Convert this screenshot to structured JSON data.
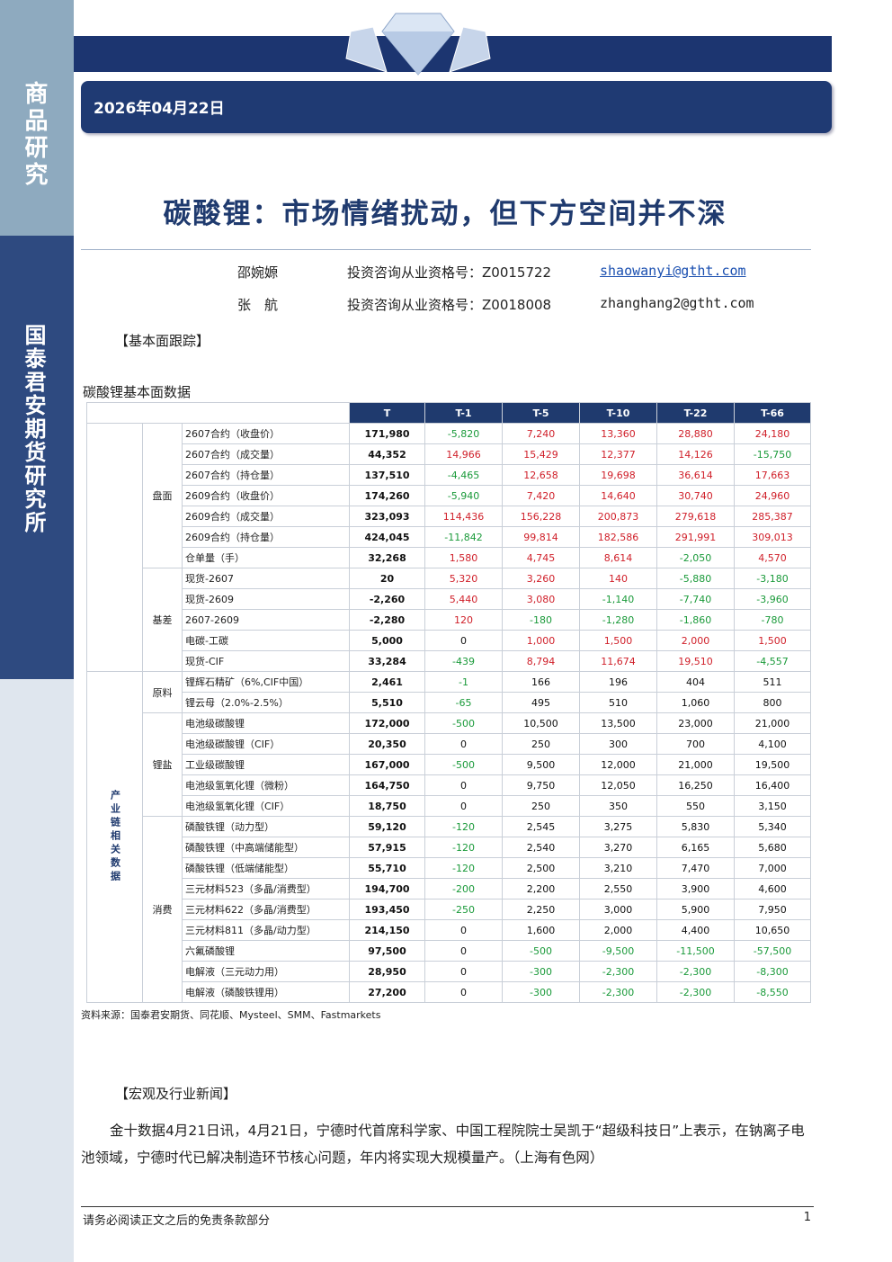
{
  "header": {
    "category": "商品研究",
    "org": "国泰君安期货研究所",
    "date": "2026年04月22日"
  },
  "title": "碳酸锂：市场情绪扰动，但下方空间并不深",
  "authors": [
    {
      "name": "邵婉嫄",
      "license": "投资咨询从业资格号：Z0015722",
      "email": "shaowanyi@gtht.com"
    },
    {
      "name": "张　航",
      "license": "投资咨询从业资格号：Z0018008",
      "email": "zhanghang2@gtht.com"
    }
  ],
  "section1": "【基本面跟踪】",
  "table": {
    "caption": "碳酸锂基本面数据",
    "columns": [
      "T",
      "T-1",
      "T-5",
      "T-10",
      "T-22",
      "T-66"
    ],
    "sections": [
      {
        "categories": [
          {
            "label": "盘面",
            "rows": [
              {
                "name": "2607合约（收盘价）",
                "values": [
                  "171,980",
                  "-5,820",
                  "7,240",
                  "13,360",
                  "28,880",
                  "24,180"
                ]
              },
              {
                "name": "2607合约（成交量）",
                "values": [
                  "44,352",
                  "14,966",
                  "15,429",
                  "12,377",
                  "14,126",
                  "-15,750"
                ]
              },
              {
                "name": "2607合约（持仓量）",
                "values": [
                  "137,510",
                  "-4,465",
                  "12,658",
                  "19,698",
                  "36,614",
                  "17,663"
                ]
              },
              {
                "name": "2609合约（收盘价）",
                "values": [
                  "174,260",
                  "-5,940",
                  "7,420",
                  "14,640",
                  "30,740",
                  "24,960"
                ]
              },
              {
                "name": "2609合约（成交量）",
                "values": [
                  "323,093",
                  "114,436",
                  "156,228",
                  "200,873",
                  "279,618",
                  "285,387"
                ]
              },
              {
                "name": "2609合约（持仓量）",
                "values": [
                  "424,045",
                  "-11,842",
                  "99,814",
                  "182,586",
                  "291,991",
                  "309,013"
                ]
              },
              {
                "name": "仓单量（手）",
                "values": [
                  "32,268",
                  "1,580",
                  "4,745",
                  "8,614",
                  "-2,050",
                  "4,570"
                ]
              }
            ]
          },
          {
            "label": "基差",
            "rows": [
              {
                "name": "现货-2607",
                "values": [
                  "20",
                  "5,320",
                  "3,260",
                  "140",
                  "-5,880",
                  "-3,180"
                ]
              },
              {
                "name": "现货-2609",
                "values": [
                  "-2,260",
                  "5,440",
                  "3,080",
                  "-1,140",
                  "-7,740",
                  "-3,960"
                ]
              },
              {
                "name": "2607-2609",
                "values": [
                  "-2,280",
                  "120",
                  "-180",
                  "-1,280",
                  "-1,860",
                  "-780"
                ]
              },
              {
                "name": "电碳-工碳",
                "values": [
                  "5,000",
                  "0",
                  "1,000",
                  "1,500",
                  "2,000",
                  "1,500"
                ]
              },
              {
                "name": "现货-CIF",
                "values": [
                  "33,284",
                  "-439",
                  "8,794",
                  "11,674",
                  "19,510",
                  "-4,557"
                ]
              }
            ]
          }
        ]
      },
      {
        "label": "产业链相关数据",
        "categories": [
          {
            "label": "原料",
            "rows": [
              {
                "name": "锂辉石精矿（6%,CIF中国）",
                "values": [
                  "2,461",
                  "-1",
                  "166",
                  "196",
                  "404",
                  "511"
                ]
              },
              {
                "name": "锂云母（2.0%-2.5%）",
                "values": [
                  "5,510",
                  "-65",
                  "495",
                  "510",
                  "1,060",
                  "800"
                ]
              }
            ]
          },
          {
            "label": "锂盐",
            "rows": [
              {
                "name": "电池级碳酸锂",
                "values": [
                  "172,000",
                  "-500",
                  "10,500",
                  "13,500",
                  "23,000",
                  "21,000"
                ]
              },
              {
                "name": "电池级碳酸锂（CIF）",
                "values": [
                  "20,350",
                  "0",
                  "250",
                  "300",
                  "700",
                  "4,100"
                ]
              },
              {
                "name": "工业级碳酸锂",
                "values": [
                  "167,000",
                  "-500",
                  "9,500",
                  "12,000",
                  "21,000",
                  "19,500"
                ]
              },
              {
                "name": "电池级氢氧化锂（微粉）",
                "values": [
                  "164,750",
                  "0",
                  "9,750",
                  "12,050",
                  "16,250",
                  "16,400"
                ]
              },
              {
                "name": "电池级氢氧化锂（CIF）",
                "values": [
                  "18,750",
                  "0",
                  "250",
                  "350",
                  "550",
                  "3,150"
                ]
              }
            ]
          },
          {
            "label": "消费",
            "rows": [
              {
                "name": "磷酸铁锂（动力型）",
                "values": [
                  "59,120",
                  "-120",
                  "2,545",
                  "3,275",
                  "5,830",
                  "5,340"
                ]
              },
              {
                "name": "磷酸铁锂（中高端储能型）",
                "values": [
                  "57,915",
                  "-120",
                  "2,540",
                  "3,270",
                  "6,165",
                  "5,680"
                ]
              },
              {
                "name": "磷酸铁锂（低端储能型）",
                "values": [
                  "55,710",
                  "-120",
                  "2,500",
                  "3,210",
                  "7,470",
                  "7,000"
                ]
              },
              {
                "name": "三元材料523（多晶/消费型）",
                "values": [
                  "194,700",
                  "-200",
                  "2,200",
                  "2,550",
                  "3,900",
                  "4,600"
                ]
              },
              {
                "name": "三元材料622（多晶/消费型）",
                "values": [
                  "193,450",
                  "-250",
                  "2,250",
                  "3,000",
                  "5,900",
                  "7,950"
                ]
              },
              {
                "name": "三元材料811（多晶/动力型）",
                "values": [
                  "214,150",
                  "0",
                  "1,600",
                  "2,000",
                  "4,400",
                  "10,650"
                ]
              },
              {
                "name": "六氟磷酸锂",
                "values": [
                  "97,500",
                  "0",
                  "-500",
                  "-9,500",
                  "-11,500",
                  "-57,500"
                ]
              },
              {
                "name": "电解液（三元动力用）",
                "values": [
                  "28,950",
                  "0",
                  "-300",
                  "-2,300",
                  "-2,300",
                  "-8,300"
                ]
              },
              {
                "name": "电解液（磷酸铁锂用）",
                "values": [
                  "27,200",
                  "0",
                  "-300",
                  "-2,300",
                  "-2,300",
                  "-8,550"
                ]
              }
            ]
          }
        ]
      }
    ],
    "source": "资料来源：国泰君安期货、同花顺、Mysteel、SMM、Fastmarkets"
  },
  "section2": "【宏观及行业新闻】",
  "news": "金十数据4月21日讯，4月21日，宁德时代首席科学家、中国工程院院士吴凯于“超级科技日”上表示，在钠离子电池领域，宁德时代已解决制造环节核心问题，年内将实现大规模量产。（上海有色网）",
  "footer": {
    "disclaimer": "请务必阅读正文之后的免责条款部分",
    "page": 1
  }
}
